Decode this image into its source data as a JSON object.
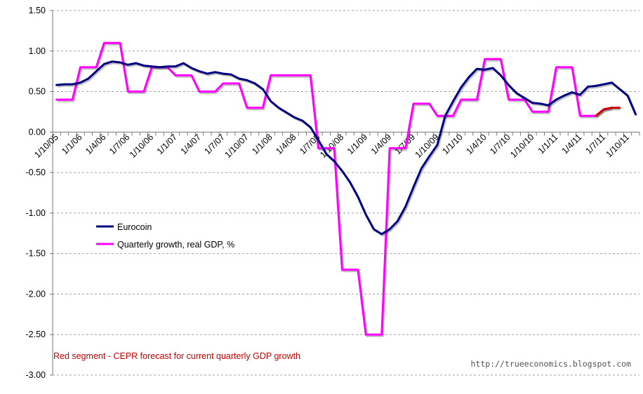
{
  "chart_data": {
    "type": "line",
    "title": "",
    "xlabel": "",
    "ylabel": "",
    "ylim": [
      -3.0,
      1.5
    ],
    "yticks": [
      1.5,
      1.0,
      0.5,
      0.0,
      -0.5,
      -1.0,
      -1.5,
      -2.0,
      -2.5,
      -3.0
    ],
    "ytick_labels": [
      "1.50",
      "1.00",
      "0.50",
      "0.00",
      "-0.50",
      "-1.00",
      "-1.50",
      "-2.00",
      "-2.50",
      "-3.00"
    ],
    "x_count": 74,
    "x_tick_labels": [
      "1/10/05",
      "1/1/06",
      "1/4/06",
      "1/7/06",
      "1/10/06",
      "1/1/07",
      "1/4/07",
      "1/7/07",
      "1/10/07",
      "1/1/08",
      "1/4/08",
      "1/7/08",
      "1/10/08",
      "1/1/09",
      "1/4/09",
      "1/7/09",
      "1/10/09",
      "1/1/10",
      "1/4/10",
      "1/7/10",
      "1/10/10",
      "1/1/11",
      "1/4/11",
      "1/7/11",
      "1/10/11"
    ],
    "grid": "horizontal dashed",
    "legend_position": "center-left",
    "series": [
      {
        "name": "Eurocoin",
        "color": "#000080",
        "values": [
          0.58,
          0.59,
          0.59,
          0.61,
          0.66,
          0.75,
          0.84,
          0.87,
          0.86,
          0.83,
          0.85,
          0.82,
          0.81,
          0.8,
          0.81,
          0.81,
          0.85,
          0.79,
          0.75,
          0.72,
          0.74,
          0.72,
          0.71,
          0.66,
          0.64,
          0.6,
          0.53,
          0.38,
          0.3,
          0.24,
          0.18,
          0.14,
          0.06,
          -0.1,
          -0.27,
          -0.36,
          -0.48,
          -0.62,
          -0.8,
          -1.02,
          -1.2,
          -1.26,
          -1.2,
          -1.1,
          -0.92,
          -0.68,
          -0.45,
          -0.3,
          -0.16,
          0.2,
          0.38,
          0.55,
          0.68,
          0.78,
          0.77,
          0.79,
          0.7,
          0.58,
          0.48,
          0.42,
          0.36,
          0.35,
          0.33,
          0.4,
          0.45,
          0.49,
          0.46,
          0.56,
          0.57,
          0.59,
          0.61,
          0.53,
          0.45,
          0.22
        ]
      },
      {
        "name": "Quarterly growth, real GDP, %",
        "color": "#ff00ff",
        "values": [
          0.4,
          0.4,
          0.4,
          0.8,
          0.8,
          0.8,
          1.1,
          1.1,
          1.1,
          0.5,
          0.5,
          0.5,
          0.8,
          0.8,
          0.8,
          0.7,
          0.7,
          0.7,
          0.5,
          0.5,
          0.5,
          0.6,
          0.6,
          0.6,
          0.3,
          0.3,
          0.3,
          0.7,
          0.7,
          0.7,
          0.7,
          0.7,
          0.7,
          -0.2,
          -0.2,
          -0.2,
          -1.7,
          -1.7,
          -1.7,
          -2.5,
          -2.5,
          -2.5,
          -0.2,
          -0.2,
          -0.2,
          0.35,
          0.35,
          0.35,
          0.2,
          0.2,
          0.2,
          0.4,
          0.4,
          0.4,
          0.9,
          0.9,
          0.9,
          0.4,
          0.4,
          0.4,
          0.25,
          0.25,
          0.25,
          0.8,
          0.8,
          0.8,
          0.2,
          0.2,
          0.2,
          0.28,
          0.3
        ]
      },
      {
        "name": "CEPR forecast",
        "color": "#cc0000",
        "start_index": 68,
        "values": [
          0.2,
          0.28,
          0.3,
          0.3
        ]
      }
    ],
    "annotations": [
      {
        "text": "Red segment - CEPR forecast for current quarterly GDP growth",
        "color": "#cc0000"
      },
      {
        "text": "http://trueeconomics.blogspot.com",
        "color": "#555555"
      }
    ]
  }
}
